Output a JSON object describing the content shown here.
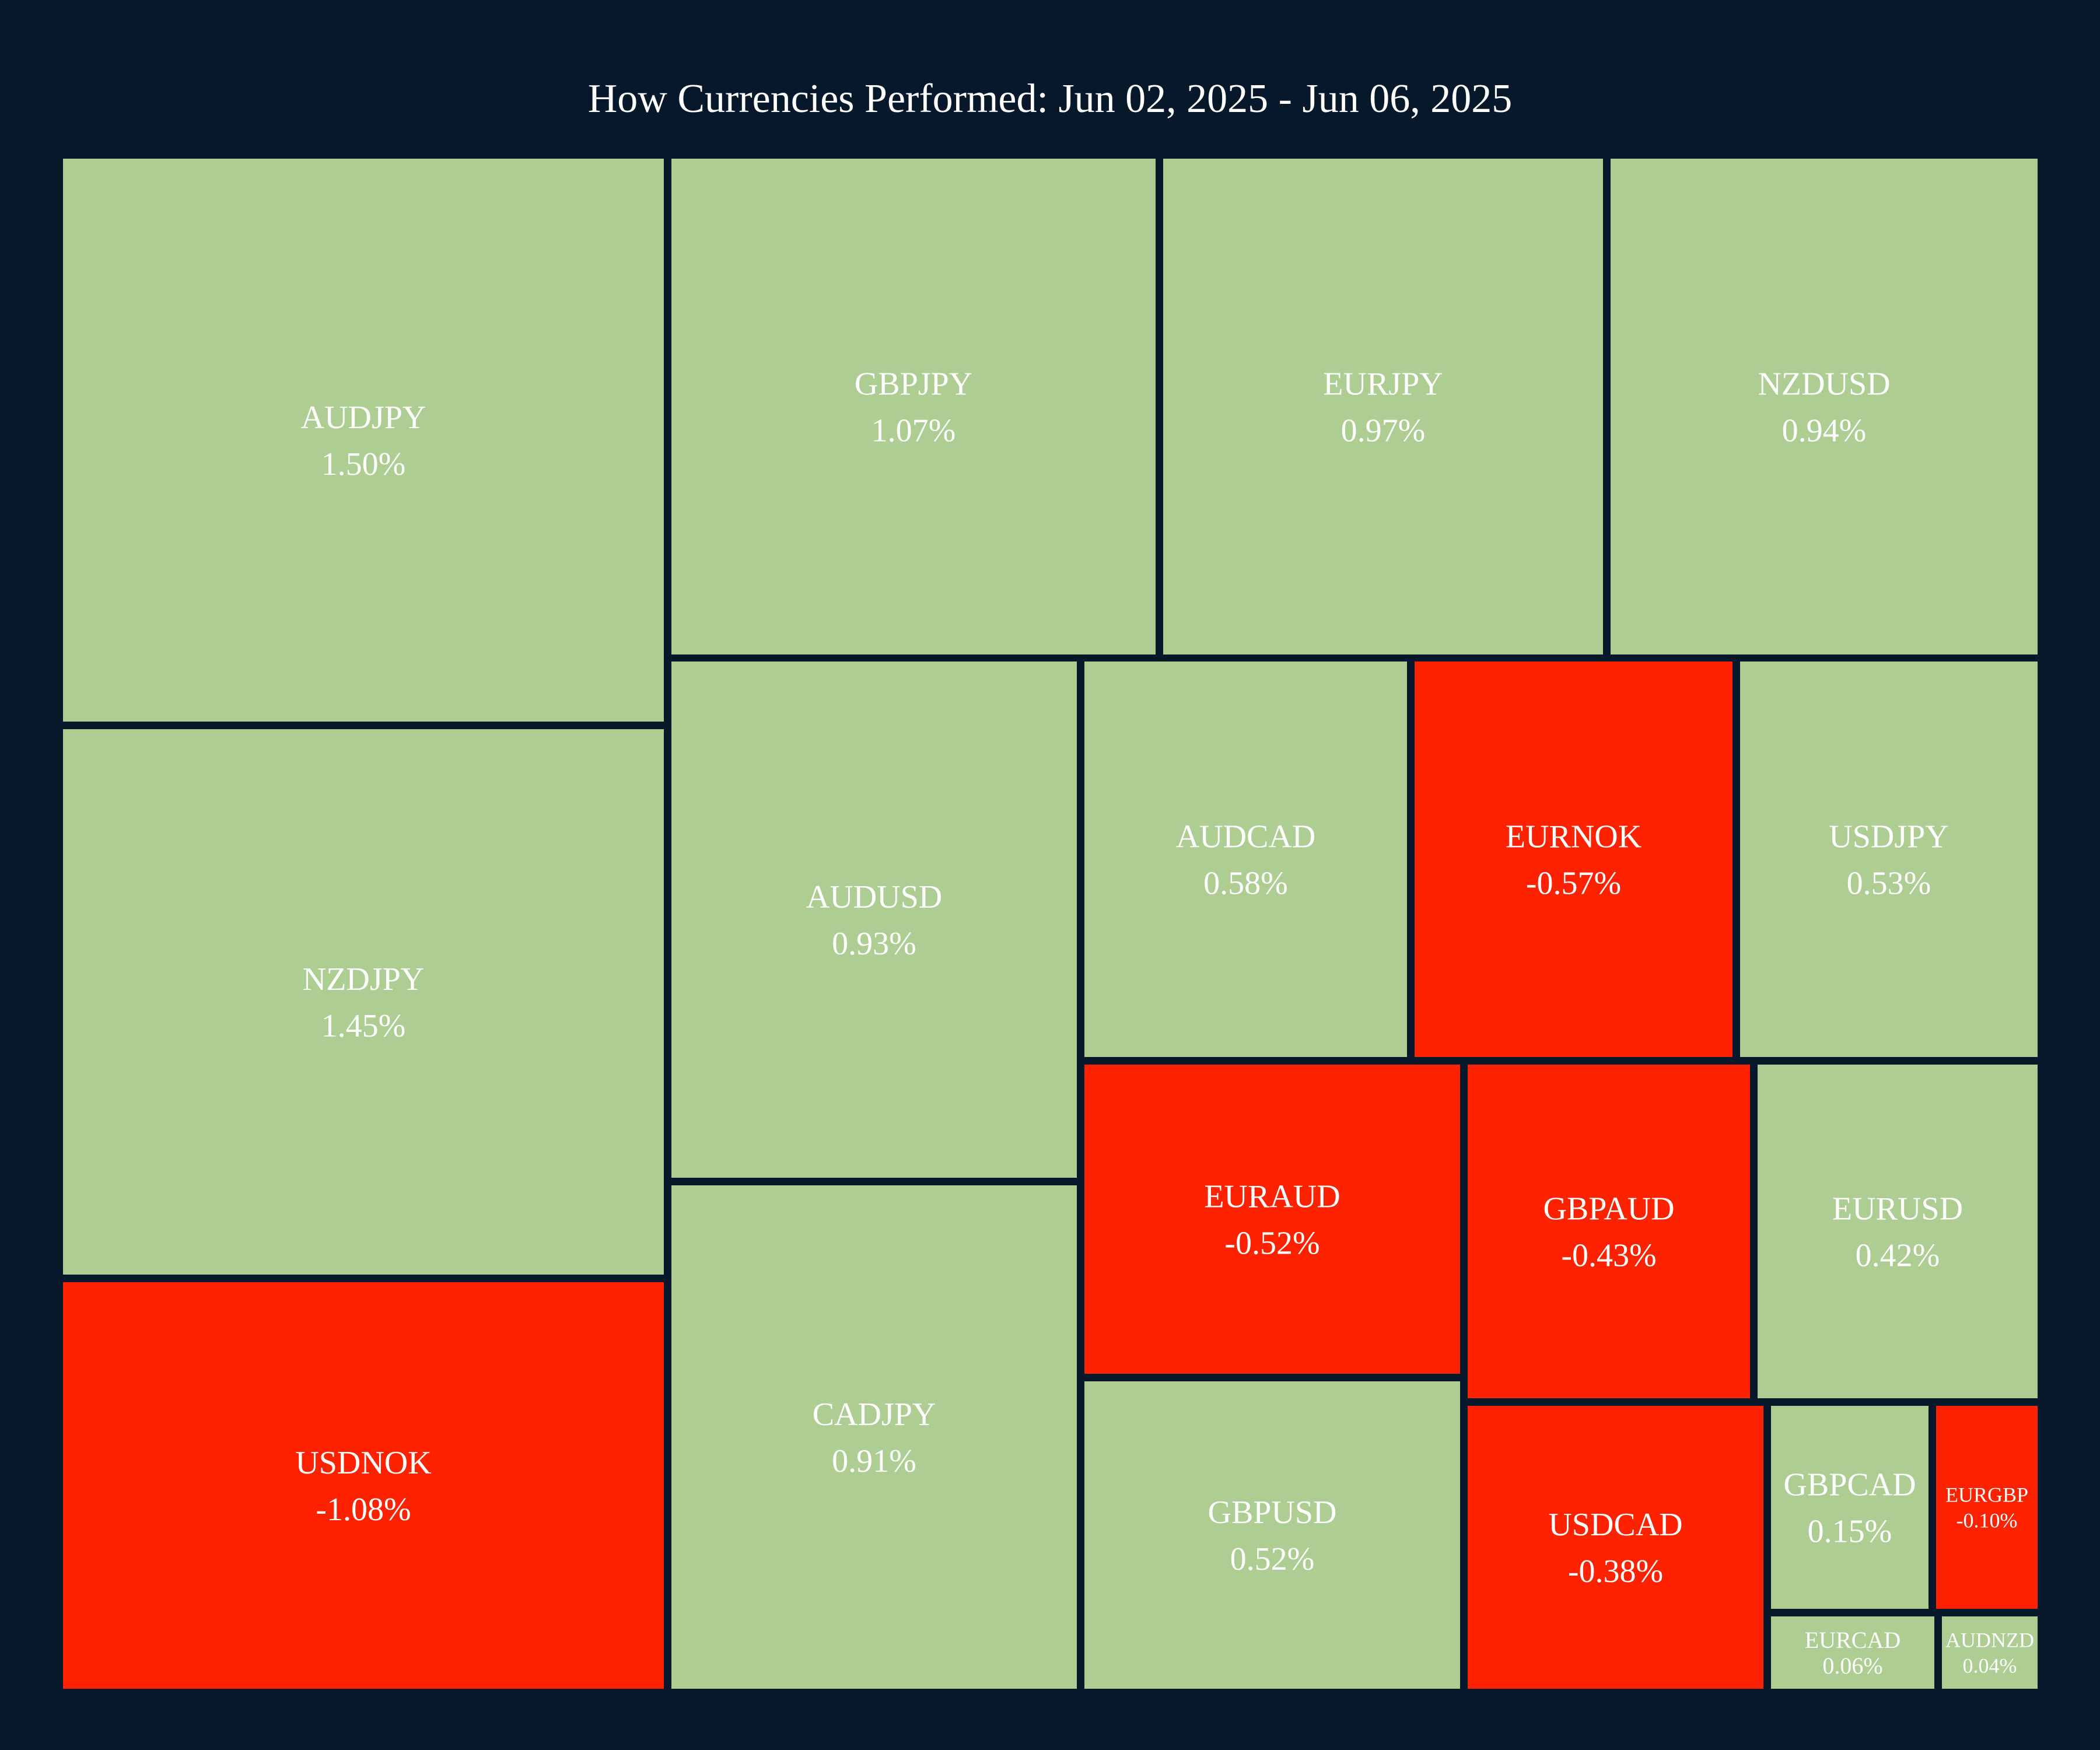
{
  "colors": {
    "background": "#06182a",
    "positive": "#adcd93",
    "negative": "#ff2200",
    "label": "#ffffff"
  },
  "chart_data": {
    "type": "treemap",
    "title": "How Currencies Performed: Jun 02, 2025 - Jun 06, 2025",
    "items": [
      {
        "name": "AUDJPY",
        "value": 1.5,
        "label": "1.50%"
      },
      {
        "name": "NZDJPY",
        "value": 1.45,
        "label": "1.45%"
      },
      {
        "name": "USDNOK",
        "value": -1.08,
        "label": "-1.08%"
      },
      {
        "name": "GBPJPY",
        "value": 1.07,
        "label": "1.07%"
      },
      {
        "name": "EURJPY",
        "value": 0.97,
        "label": "0.97%"
      },
      {
        "name": "NZDUSD",
        "value": 0.94,
        "label": "0.94%"
      },
      {
        "name": "AUDUSD",
        "value": 0.93,
        "label": "0.93%"
      },
      {
        "name": "CADJPY",
        "value": 0.91,
        "label": "0.91%"
      },
      {
        "name": "AUDCAD",
        "value": 0.58,
        "label": "0.58%"
      },
      {
        "name": "EURNOK",
        "value": -0.57,
        "label": "-0.57%"
      },
      {
        "name": "USDJPY",
        "value": 0.53,
        "label": "0.53%"
      },
      {
        "name": "EURAUD",
        "value": -0.52,
        "label": "-0.52%"
      },
      {
        "name": "GBPAUD",
        "value": -0.43,
        "label": "-0.43%"
      },
      {
        "name": "EURUSD",
        "value": 0.42,
        "label": "0.42%"
      },
      {
        "name": "GBPUSD",
        "value": 0.52,
        "label": "0.52%"
      },
      {
        "name": "USDCAD",
        "value": -0.38,
        "label": "-0.38%"
      },
      {
        "name": "GBPCAD",
        "value": 0.15,
        "label": "0.15%"
      },
      {
        "name": "EURGBP",
        "value": -0.1,
        "label": "-0.10%"
      },
      {
        "name": "EURCAD",
        "value": 0.06,
        "label": "0.06%"
      },
      {
        "name": "AUDNZD",
        "value": 0.04,
        "label": "0.04%"
      }
    ]
  }
}
